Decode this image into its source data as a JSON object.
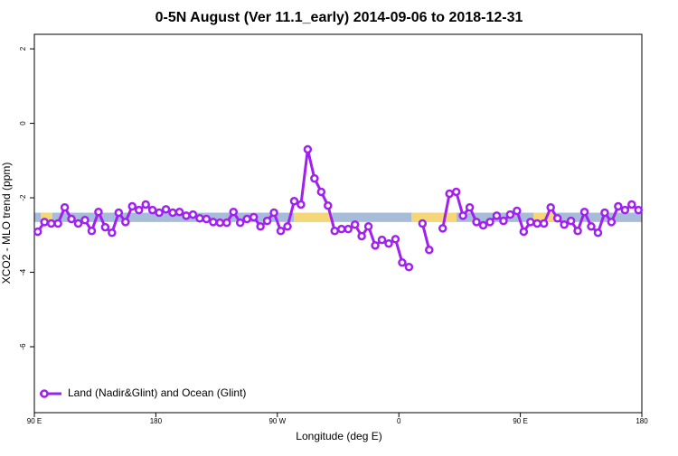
{
  "chart_data": {
    "type": "line",
    "title": "0-5N August (Ver 11.1_early)   2014-09-06 to 2018-12-31",
    "x_label": "Longitude (deg E)",
    "y_label": "XCO2 - MLO trend (ppm)",
    "x": [
      92.5,
      97.5,
      102.5,
      107.5,
      112.5,
      117.5,
      122.5,
      127.5,
      132.5,
      137.5,
      142.5,
      147.5,
      152.5,
      157.5,
      162.5,
      167.5,
      172.5,
      177.5,
      182.5,
      187.5,
      192.5,
      197.5,
      202.5,
      207.5,
      212.5,
      217.5,
      222.5,
      227.5,
      232.5,
      237.5,
      242.5,
      247.5,
      252.5,
      257.5,
      262.5,
      267.5,
      272.5,
      277.5,
      282.5,
      287.5,
      292.5,
      297.5,
      302.5,
      307.5,
      312.5,
      317.5,
      322.5,
      327.5,
      332.5,
      337.5,
      342.5,
      347.5,
      352.5,
      357.5,
      362.5,
      367.5,
      372.5,
      377.5,
      382.5,
      387.5,
      392.5,
      397.5,
      402.5,
      407.5,
      412.5,
      417.5,
      422.5,
      427.5,
      432.5,
      437.5,
      442.5,
      447.5,
      452.5,
      457.5,
      462.5,
      467.5,
      472.5,
      477.5,
      482.5,
      487.5,
      492.5,
      497.5,
      502.5,
      507.5,
      512.5,
      517.5,
      522.5,
      527.5,
      532.5,
      537.5
    ],
    "series": [
      {
        "name": "Land (Nadir&Glint) and Ocean (Glint)",
        "color": "#a020f0",
        "values": [
          -2.91,
          -2.65,
          -2.69,
          -2.69,
          -2.26,
          -2.57,
          -2.69,
          -2.6,
          -2.89,
          -2.38,
          -2.79,
          -2.94,
          -2.4,
          -2.65,
          -2.23,
          -2.33,
          -2.18,
          -2.33,
          -2.4,
          -2.31,
          -2.4,
          -2.38,
          -2.48,
          -2.45,
          -2.55,
          -2.57,
          -2.65,
          -2.67,
          -2.67,
          -2.38,
          -2.67,
          -2.57,
          -2.52,
          -2.77,
          -2.62,
          -2.4,
          -2.89,
          -2.77,
          -2.09,
          -2.18,
          -0.7,
          -1.48,
          -1.84,
          -2.21,
          -2.89,
          -2.84,
          -2.84,
          -2.72,
          -3.03,
          -2.77,
          -3.28,
          -3.13,
          -3.23,
          -3.11,
          -3.74,
          -3.86,
          null,
          -2.69,
          -3.4,
          null,
          -2.82,
          -1.89,
          -1.84,
          -2.48,
          -2.26,
          -2.65,
          -2.74,
          -2.65,
          -2.48,
          -2.62,
          -2.45,
          -2.35,
          -2.91,
          -2.65,
          -2.69,
          -2.69,
          -2.26,
          -2.55,
          -2.72,
          -2.62,
          -2.89,
          -2.38,
          -2.77,
          -2.94,
          -2.4,
          -2.65,
          -2.23,
          -2.33,
          -2.18,
          -2.33
        ]
      }
    ],
    "band": {
      "range": [
        -2.4,
        -2.65
      ],
      "color": "#a7bcd9",
      "land_color": "#f5d77a",
      "land_segments": [
        [
          94.7,
          103.4
        ],
        [
          282.2,
          311
        ],
        [
          369.3,
          402.8
        ],
        [
          459.7,
          476.5
        ]
      ]
    },
    "xlim": [
      90,
      540
    ],
    "xticks": [
      {
        "value": 90,
        "label": "90 E"
      },
      180,
      {
        "value": 270,
        "label": "90 W"
      },
      {
        "value": 360,
        "label": "0"
      },
      {
        "value": 450,
        "label": "90 E"
      },
      {
        "value": 540,
        "label": "180"
      }
    ],
    "ylim": [
      -7.77,
      2.39
    ],
    "yticks": [
      -6,
      -4,
      -2,
      0,
      2
    ],
    "legend": "bottom-left"
  }
}
